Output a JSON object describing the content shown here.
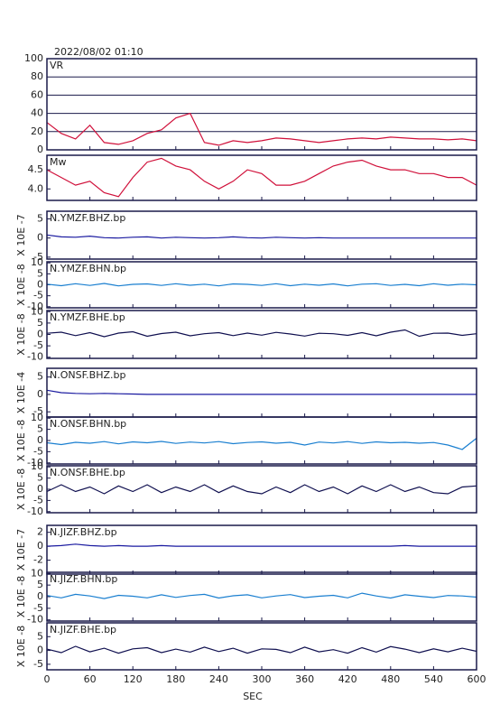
{
  "header": {
    "timestamp": "2022/08/02 01:10"
  },
  "chart_data": [
    {
      "type": "line",
      "label": "VR",
      "color": "#d0103a",
      "grid": true,
      "ylim": [
        0,
        100
      ],
      "yticks": [
        0,
        20,
        40,
        60,
        80,
        100
      ],
      "x": [
        0,
        20,
        40,
        60,
        80,
        100,
        120,
        140,
        160,
        180,
        200,
        220,
        240,
        260,
        280,
        300,
        320,
        340,
        360,
        380,
        400,
        420,
        440,
        460,
        480,
        500,
        520,
        540,
        560,
        580,
        600
      ],
      "values": [
        30,
        18,
        12,
        27,
        8,
        6,
        10,
        18,
        22,
        35,
        40,
        8,
        5,
        10,
        8,
        10,
        13,
        12,
        10,
        8,
        10,
        12,
        13,
        12,
        14,
        13,
        12,
        12,
        11,
        12,
        10
      ]
    },
    {
      "type": "line",
      "label": "Mw",
      "color": "#d0103a",
      "ylim": [
        3.7,
        4.88
      ],
      "yticks": [
        {
          "value": 4,
          "label": "4.0"
        },
        4.5
      ],
      "x": [
        0,
        20,
        40,
        60,
        80,
        100,
        120,
        140,
        160,
        180,
        200,
        220,
        240,
        260,
        280,
        300,
        320,
        340,
        360,
        380,
        400,
        420,
        440,
        460,
        480,
        500,
        520,
        540,
        560,
        580,
        600
      ],
      "values": [
        4.5,
        4.3,
        4.1,
        4.2,
        3.9,
        3.8,
        4.3,
        4.7,
        4.8,
        4.6,
        4.5,
        4.2,
        4.0,
        4.2,
        4.5,
        4.4,
        4.1,
        4.1,
        4.2,
        4.4,
        4.6,
        4.7,
        4.75,
        4.6,
        4.5,
        4.5,
        4.4,
        4.4,
        4.3,
        4.3,
        4.1
      ]
    },
    {
      "type": "line",
      "label": "N.YMZF.BHZ.bp",
      "unit": "X 10E -7",
      "color": "#1a1aa0",
      "ylim": [
        -5.5,
        7
      ],
      "yticks": [
        -5,
        0,
        5
      ],
      "x": [
        0,
        20,
        40,
        60,
        80,
        100,
        120,
        140,
        160,
        180,
        200,
        220,
        240,
        260,
        280,
        300,
        320,
        340,
        360,
        380,
        400,
        420,
        440,
        460,
        480,
        500,
        520,
        540,
        560,
        580,
        600
      ],
      "values": [
        0.8,
        0.3,
        0.2,
        0.5,
        0.1,
        0,
        0.2,
        0.3,
        0,
        0.2,
        0.1,
        0,
        0.1,
        0.3,
        0.1,
        0,
        0.2,
        0.1,
        0,
        0.1,
        0,
        0,
        0,
        0,
        0,
        0,
        0,
        0,
        0,
        0,
        0
      ]
    },
    {
      "type": "line",
      "label": "N.YMZF.BHN.bp",
      "unit": "X 10E -8",
      "color": "#1a7fd0",
      "ylim": [
        -10.5,
        10.5
      ],
      "yticks": [
        -10,
        -5,
        0,
        5,
        10
      ],
      "x": [
        0,
        20,
        40,
        60,
        80,
        100,
        120,
        140,
        160,
        180,
        200,
        220,
        240,
        260,
        280,
        300,
        320,
        340,
        360,
        380,
        400,
        420,
        440,
        460,
        480,
        500,
        520,
        540,
        560,
        580,
        600
      ],
      "values": [
        0.3,
        -0.4,
        0.5,
        -0.3,
        0.6,
        -0.5,
        0.2,
        0.4,
        -0.3,
        0.5,
        -0.2,
        0.3,
        -0.5,
        0.4,
        0.2,
        -0.3,
        0.5,
        -0.4,
        0.3,
        -0.2,
        0.4,
        -0.5,
        0.3,
        0.5,
        -0.3,
        0.2,
        -0.4,
        0.5,
        -0.2,
        0.3,
        0
      ]
    },
    {
      "type": "line",
      "label": "N.YMZF.BHE.bp",
      "unit": "X 10E -8",
      "color": "#101050",
      "ylim": [
        -10.5,
        10.5
      ],
      "yticks": [
        -10,
        -5,
        0,
        5,
        10
      ],
      "x": [
        0,
        20,
        40,
        60,
        80,
        100,
        120,
        140,
        160,
        180,
        200,
        220,
        240,
        260,
        280,
        300,
        320,
        340,
        360,
        380,
        400,
        420,
        440,
        460,
        480,
        500,
        520,
        540,
        560,
        580,
        600
      ],
      "values": [
        0.5,
        1,
        -0.5,
        0.8,
        -1,
        0.6,
        1.2,
        -0.8,
        0.4,
        1,
        -0.6,
        0.3,
        0.8,
        -0.5,
        0.6,
        -0.3,
        0.9,
        0.2,
        -0.7,
        0.5,
        0.3,
        -0.4,
        0.8,
        -0.6,
        1,
        2,
        -0.8,
        0.5,
        0.6,
        -0.4,
        0.3
      ]
    },
    {
      "type": "line",
      "label": "N.ONSF.BHZ.bp",
      "unit": "X 10E -4",
      "color": "#1a1aa0",
      "ylim": [
        -6.5,
        7.5
      ],
      "yticks": [
        -5,
        0,
        5
      ],
      "x": [
        0,
        20,
        40,
        60,
        80,
        100,
        120,
        140,
        160,
        180,
        200,
        220,
        240,
        260,
        280,
        300,
        320,
        340,
        360,
        380,
        400,
        420,
        440,
        460,
        480,
        500,
        520,
        540,
        560,
        580,
        600
      ],
      "values": [
        1.2,
        0.5,
        0.3,
        0.2,
        0.3,
        0.2,
        0.1,
        0,
        0,
        0,
        0,
        0,
        0,
        0,
        0,
        0,
        0,
        0,
        0,
        0,
        0,
        0,
        0,
        0,
        0,
        0,
        0,
        0,
        0,
        0,
        0
      ]
    },
    {
      "type": "line",
      "label": "N.ONSF.BHN.bp",
      "unit": "X 10E -8",
      "color": "#1a7fd0",
      "ylim": [
        -10.5,
        10.5
      ],
      "yticks": [
        -10,
        -5,
        0,
        5,
        10
      ],
      "x": [
        0,
        20,
        40,
        60,
        80,
        100,
        120,
        140,
        160,
        180,
        200,
        220,
        240,
        260,
        280,
        300,
        320,
        340,
        360,
        380,
        400,
        420,
        440,
        460,
        480,
        500,
        520,
        540,
        560,
        580,
        600
      ],
      "values": [
        -1,
        -1.8,
        -0.8,
        -1.2,
        -0.5,
        -1.5,
        -0.6,
        -1,
        -0.4,
        -1.3,
        -0.7,
        -1.1,
        -0.5,
        -1.4,
        -0.9,
        -0.6,
        -1.2,
        -0.8,
        -2,
        -0.7,
        -1.1,
        -0.5,
        -1.3,
        -0.6,
        -1,
        -0.8,
        -1.2,
        -0.9,
        -2,
        -4,
        1
      ]
    },
    {
      "type": "line",
      "label": "N.ONSF.BHE.bp",
      "unit": "X 10E -8",
      "color": "#101050",
      "ylim": [
        -10.5,
        10.5
      ],
      "yticks": [
        -10,
        -5,
        0,
        5,
        10
      ],
      "x": [
        0,
        20,
        40,
        60,
        80,
        100,
        120,
        140,
        160,
        180,
        200,
        220,
        240,
        260,
        280,
        300,
        320,
        340,
        360,
        380,
        400,
        420,
        440,
        460,
        480,
        500,
        520,
        540,
        560,
        580,
        600
      ],
      "values": [
        -1,
        2,
        -1,
        1,
        -2,
        1.5,
        -1,
        2,
        -1.5,
        1,
        -1,
        2,
        -1.5,
        1.5,
        -1,
        -2,
        1,
        -1.5,
        2,
        -1,
        1,
        -2,
        1.5,
        -1,
        2,
        -1,
        1,
        -1.5,
        -2,
        1,
        1.5
      ]
    },
    {
      "type": "line",
      "label": "N.JIZF.BHZ.bp",
      "unit": "X 10E -7",
      "color": "#1a1aa0",
      "ylim": [
        -4,
        3
      ],
      "yticks": [
        -2,
        0,
        2
      ],
      "x": [
        0,
        20,
        40,
        60,
        80,
        100,
        120,
        140,
        160,
        180,
        200,
        220,
        240,
        260,
        280,
        300,
        320,
        340,
        360,
        380,
        400,
        420,
        440,
        460,
        480,
        500,
        520,
        540,
        560,
        580,
        600
      ],
      "values": [
        0,
        0.1,
        0.3,
        0.1,
        0,
        0.1,
        0,
        0,
        0.1,
        0,
        0,
        0,
        0,
        0,
        0,
        0,
        0,
        0,
        0,
        0,
        0,
        0,
        0,
        0,
        0,
        0.1,
        0,
        0,
        0,
        0,
        0
      ]
    },
    {
      "type": "line",
      "label": "N.JIZF.BHN.bp",
      "unit": "X 10E -8",
      "color": "#1a7fd0",
      "ylim": [
        -10.5,
        10.5
      ],
      "yticks": [
        -10,
        -5,
        0,
        5,
        10
      ],
      "x": [
        0,
        20,
        40,
        60,
        80,
        100,
        120,
        140,
        160,
        180,
        200,
        220,
        240,
        260,
        280,
        300,
        320,
        340,
        360,
        380,
        400,
        420,
        440,
        460,
        480,
        500,
        520,
        540,
        560,
        580,
        600
      ],
      "values": [
        0.5,
        -0.5,
        1,
        0.3,
        -0.8,
        0.6,
        0.2,
        -0.5,
        0.8,
        -0.3,
        0.5,
        1,
        -0.6,
        0.4,
        0.8,
        -0.5,
        0.3,
        0.9,
        -0.4,
        0.2,
        0.6,
        -0.5,
        1.5,
        0.3,
        -0.6,
        0.8,
        0.2,
        -0.4,
        0.5,
        0.3,
        -0.2
      ]
    },
    {
      "type": "line",
      "label": "N.JIZF.BHE.bp",
      "unit": "X 10E -8",
      "color": "#101050",
      "ylim": [
        -7,
        10
      ],
      "yticks": [
        -5,
        0,
        5
      ],
      "x": [
        0,
        20,
        40,
        60,
        80,
        100,
        120,
        140,
        160,
        180,
        200,
        220,
        240,
        260,
        280,
        300,
        320,
        340,
        360,
        380,
        400,
        420,
        440,
        460,
        480,
        500,
        520,
        540,
        560,
        580,
        600
      ],
      "values": [
        0.5,
        -0.8,
        1.5,
        -0.5,
        0.8,
        -1,
        0.6,
        1,
        -0.8,
        0.5,
        -0.6,
        1.2,
        -0.4,
        0.8,
        -1,
        0.6,
        0.4,
        -0.8,
        1.2,
        -0.5,
        0.3,
        -1,
        1,
        -0.6,
        1.4,
        0.5,
        -0.8,
        0.6,
        -0.5,
        0.8,
        -0.3
      ],
      "xlim": [
        0,
        600
      ],
      "xticks": [
        0,
        60,
        120,
        180,
        240,
        300,
        360,
        420,
        480,
        540,
        600
      ],
      "xlabel": "SEC"
    }
  ]
}
